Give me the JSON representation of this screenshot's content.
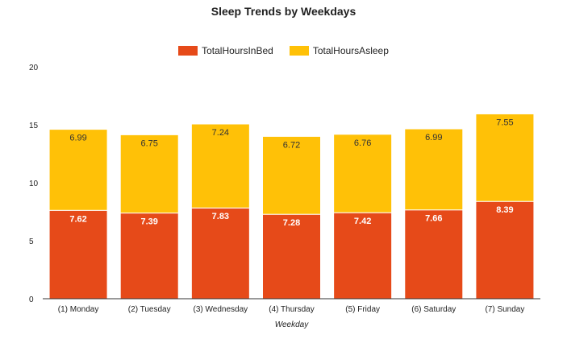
{
  "chart_data": {
    "type": "bar",
    "stacked": true,
    "title": "Sleep Trends by Weekdays",
    "xlabel": "Weekday",
    "ylabel": "",
    "ylim": [
      0,
      20
    ],
    "yticks": [
      0,
      5,
      10,
      15,
      20
    ],
    "grid": false,
    "legend_position": "top",
    "categories": [
      "(1) Monday",
      "(2) Tuesday",
      "(3) Wednesday",
      "(4) Thursday",
      "(5) Friday",
      "(6) Saturday",
      "(7) Sunday"
    ],
    "series": [
      {
        "name": "TotalHoursInBed",
        "color": "#e64a19",
        "values": [
          7.62,
          7.39,
          7.83,
          7.28,
          7.42,
          7.66,
          8.39
        ]
      },
      {
        "name": "TotalHoursAsleep",
        "color": "#ffc107",
        "values": [
          6.99,
          6.75,
          7.24,
          6.72,
          6.76,
          6.99,
          7.55
        ]
      }
    ]
  }
}
